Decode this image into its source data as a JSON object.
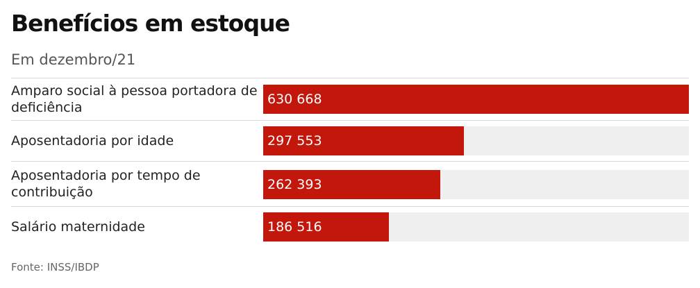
{
  "title": "Benefícios em estoque",
  "subtitle": "Em dezembro/21",
  "source": "Fonte: INSS/IBDP",
  "colors": {
    "bar": "#c4170c",
    "track": "#efefef"
  },
  "chart_data": {
    "type": "bar",
    "orientation": "horizontal",
    "title": "Benefícios em estoque",
    "subtitle": "Em dezembro/21",
    "categories": [
      "Amparo social à pessoa portadora de deficiência",
      "Aposentadoria por idade",
      "Aposentadoria por tempo de contribuição",
      "Salário maternidade"
    ],
    "values": [
      630668,
      297553,
      262393,
      186516
    ],
    "value_labels": [
      "630 668",
      "297 553",
      "262 393",
      "186 516"
    ],
    "xlim": [
      0,
      630668
    ],
    "grid": false,
    "legend": "none"
  }
}
